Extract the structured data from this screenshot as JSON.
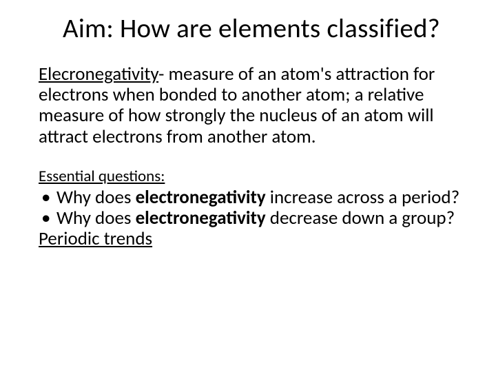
{
  "slide": {
    "title": "Aim:  How are elements classified?",
    "definition": {
      "term": "Elecronegativity",
      "text": "-  measure of an atom's attraction for electrons when bonded to another atom;  a relative measure of how strongly the nucleus of an atom will attract electrons from another atom."
    },
    "essential_questions_label": "Essential questions:",
    "questions": [
      {
        "pre": "Why does ",
        "bold": "electronegativity",
        "post": " increase across a period?"
      },
      {
        "pre": "Why does ",
        "bold": "electronegativity",
        "post": " decrease down a group?"
      }
    ],
    "link_text": "Periodic trends"
  },
  "style": {
    "background_color": "#ffffff",
    "text_color": "#000000",
    "title_fontsize": 39,
    "body_fontsize": 27,
    "eq_label_fontsize": 23,
    "font_family": "Calibri"
  }
}
